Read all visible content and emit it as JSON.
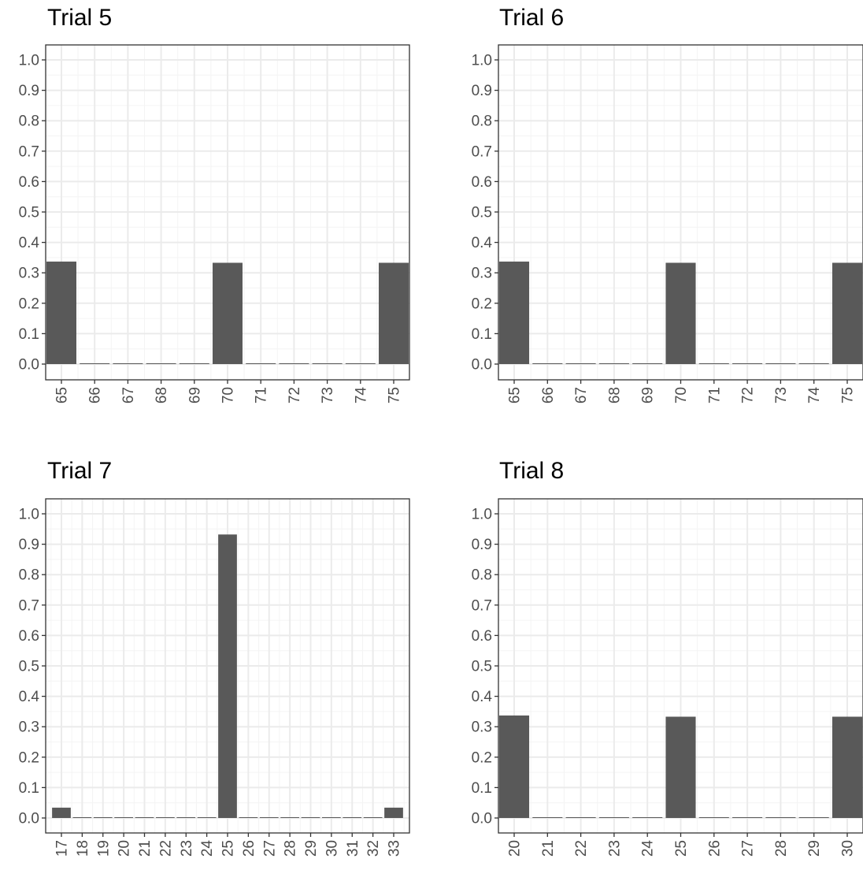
{
  "figure": {
    "colors": {
      "bar": "#595959",
      "grid_major": "#ebebeb",
      "grid_minor": "#f4f4f4",
      "axis_text": "#4d4d4d",
      "border": "#333333",
      "background": "#ffffff"
    }
  },
  "chart_data": [
    {
      "type": "bar",
      "title": "Trial 5",
      "categories": [
        "65",
        "66",
        "67",
        "68",
        "69",
        "70",
        "71",
        "72",
        "73",
        "74",
        "75"
      ],
      "values": [
        0.337,
        0,
        0,
        0,
        0,
        0.333,
        0,
        0,
        0,
        0,
        0.333
      ],
      "ylim": [
        0,
        1
      ],
      "yticks": [
        0.0,
        0.1,
        0.2,
        0.3,
        0.4,
        0.5,
        0.6,
        0.7,
        0.8,
        0.9,
        1.0
      ],
      "xlabel": "",
      "ylabel": "",
      "grid": true,
      "legend": "none",
      "x_tick_labels_rotated": true
    },
    {
      "type": "bar",
      "title": "Trial 6",
      "categories": [
        "65",
        "66",
        "67",
        "68",
        "69",
        "70",
        "71",
        "72",
        "73",
        "74",
        "75"
      ],
      "values": [
        0.337,
        0,
        0,
        0,
        0,
        0.333,
        0,
        0,
        0,
        0,
        0.333
      ],
      "ylim": [
        0,
        1
      ],
      "yticks": [
        0.0,
        0.1,
        0.2,
        0.3,
        0.4,
        0.5,
        0.6,
        0.7,
        0.8,
        0.9,
        1.0
      ],
      "xlabel": "",
      "ylabel": "",
      "grid": true,
      "legend": "none",
      "x_tick_labels_rotated": true
    },
    {
      "type": "bar",
      "title": "Trial 7",
      "categories": [
        "17",
        "18",
        "19",
        "20",
        "21",
        "22",
        "23",
        "24",
        "25",
        "26",
        "27",
        "28",
        "29",
        "30",
        "31",
        "32",
        "33"
      ],
      "values": [
        0.034,
        0,
        0,
        0,
        0,
        0,
        0,
        0,
        0.932,
        0,
        0,
        0,
        0,
        0,
        0,
        0,
        0.034
      ],
      "ylim": [
        0,
        1
      ],
      "yticks": [
        0.0,
        0.1,
        0.2,
        0.3,
        0.4,
        0.5,
        0.6,
        0.7,
        0.8,
        0.9,
        1.0
      ],
      "xlabel": "",
      "ylabel": "",
      "grid": true,
      "legend": "none",
      "x_tick_labels_rotated": true
    },
    {
      "type": "bar",
      "title": "Trial 8",
      "categories": [
        "20",
        "21",
        "22",
        "23",
        "24",
        "25",
        "26",
        "27",
        "28",
        "29",
        "30"
      ],
      "values": [
        0.337,
        0,
        0,
        0,
        0,
        0.333,
        0,
        0,
        0,
        0,
        0.333
      ],
      "ylim": [
        0,
        1
      ],
      "yticks": [
        0.0,
        0.1,
        0.2,
        0.3,
        0.4,
        0.5,
        0.6,
        0.7,
        0.8,
        0.9,
        1.0
      ],
      "xlabel": "",
      "ylabel": "",
      "grid": true,
      "legend": "none",
      "x_tick_labels_rotated": true
    }
  ]
}
